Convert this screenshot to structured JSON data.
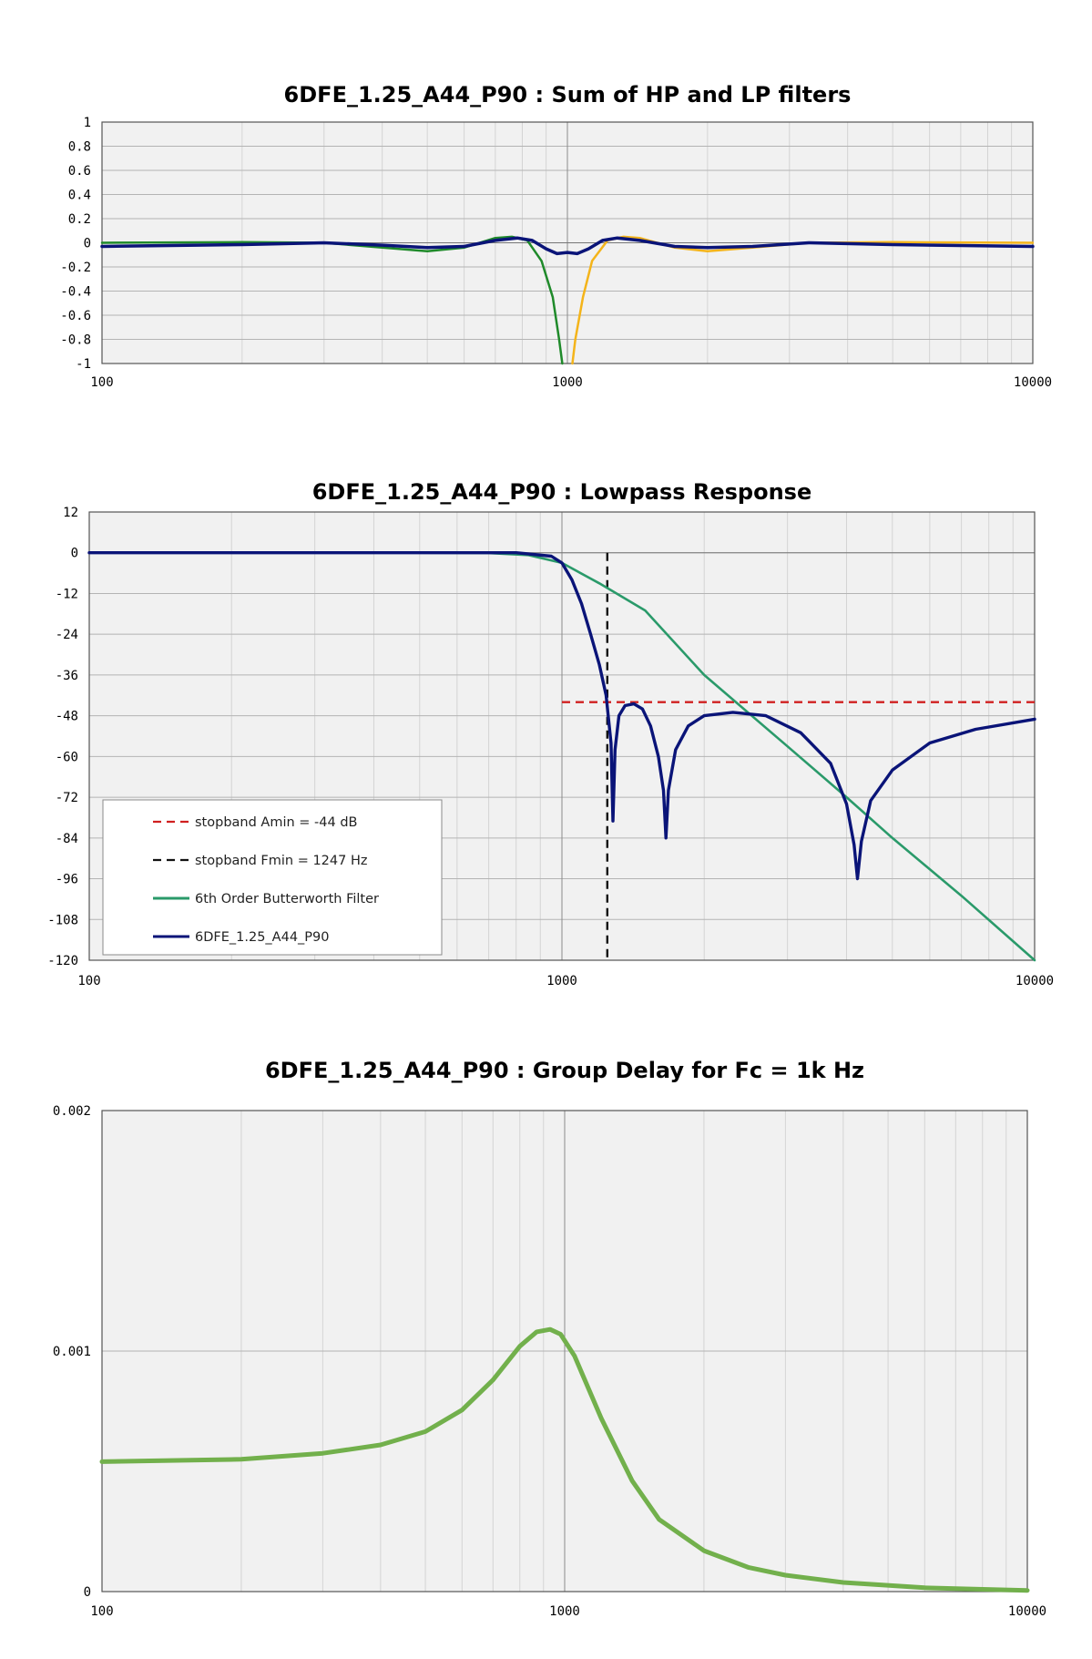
{
  "colors": {
    "plot_bg": "#f1f1f1",
    "grid": "#b4b4b4",
    "grid_minor": "#d4d4d4",
    "navy": "#0a1478",
    "butterworth_green": "#2a9a6a",
    "lp_green": "#1f8a2a",
    "hp_orange": "#f4b41a",
    "delay_green": "#72b04c",
    "amin_red": "#d02020",
    "fmin_black": "#111111"
  },
  "chart_data": [
    {
      "type": "line",
      "title": "6DFE_1.25_A44_P90 : Sum of HP and LP filters",
      "xscale": "log",
      "xlim": [
        100,
        10000
      ],
      "ylim": [
        -1,
        1
      ],
      "x_ticks": [
        "100",
        "1000",
        "10000"
      ],
      "y_ticks": [
        "1",
        "0.8",
        "0.6",
        "0.4",
        "0.2",
        "0",
        "-0.2",
        "-0.4",
        "-0.6",
        "-0.8",
        "-1"
      ],
      "grid": true,
      "series": [
        {
          "color": "lp_green",
          "points": [
            [
              100,
              0
            ],
            [
              200,
              0.005
            ],
            [
              300,
              0
            ],
            [
              400,
              -0.04
            ],
            [
              500,
              -0.07
            ],
            [
              600,
              -0.04
            ],
            [
              700,
              0.04
            ],
            [
              760,
              0.05
            ],
            [
              820,
              0.02
            ],
            [
              880,
              -0.15
            ],
            [
              930,
              -0.45
            ],
            [
              960,
              -0.8
            ],
            [
              975,
              -1
            ]
          ]
        },
        {
          "color": "hp_orange",
          "points": [
            [
              1025,
              -1
            ],
            [
              1040,
              -0.8
            ],
            [
              1080,
              -0.45
            ],
            [
              1130,
              -0.15
            ],
            [
              1220,
              0.02
            ],
            [
              1320,
              0.05
            ],
            [
              1430,
              0.04
            ],
            [
              1700,
              -0.04
            ],
            [
              2000,
              -0.07
            ],
            [
              2500,
              -0.04
            ],
            [
              3300,
              0
            ],
            [
              5000,
              0.005
            ],
            [
              10000,
              0
            ]
          ]
        },
        {
          "color": "navy",
          "points": [
            [
              100,
              -0.03
            ],
            [
              200,
              -0.015
            ],
            [
              300,
              0
            ],
            [
              400,
              -0.02
            ],
            [
              500,
              -0.04
            ],
            [
              600,
              -0.03
            ],
            [
              700,
              0.02
            ],
            [
              780,
              0.04
            ],
            [
              840,
              0.02
            ],
            [
              900,
              -0.05
            ],
            [
              950,
              -0.09
            ],
            [
              1000,
              -0.08
            ],
            [
              1050,
              -0.09
            ],
            [
              1110,
              -0.05
            ],
            [
              1190,
              0.02
            ],
            [
              1280,
              0.04
            ],
            [
              1430,
              0.02
            ],
            [
              1700,
              -0.03
            ],
            [
              2000,
              -0.04
            ],
            [
              2500,
              -0.03
            ],
            [
              3300,
              0
            ],
            [
              5000,
              -0.015
            ],
            [
              10000,
              -0.03
            ]
          ]
        }
      ]
    },
    {
      "type": "line",
      "title": "6DFE_1.25_A44_P90 : Lowpass Response",
      "xscale": "log",
      "xlim": [
        100,
        10000
      ],
      "ylim": [
        -120,
        12
      ],
      "x_ticks": [
        "100",
        "1000",
        "10000"
      ],
      "y_ticks": [
        "12",
        "0",
        "-12",
        "-24",
        "-36",
        "-48",
        "-60",
        "-72",
        "-84",
        "-96",
        "-108",
        "-120"
      ],
      "grid": true,
      "legend": {
        "position": "bottom-left",
        "entries": [
          {
            "label": "stopband Amin = -44 dB",
            "color": "amin_red",
            "dash": true
          },
          {
            "label": "stopband Fmin = 1247 Hz",
            "color": "fmin_black",
            "dash": true
          },
          {
            "label": "6th Order Butterworth Filter",
            "color": "butterworth_green",
            "dash": false
          },
          {
            "label": "6DFE_1.25_A44_P90",
            "color": "navy",
            "dash": false
          }
        ]
      },
      "series": [
        {
          "name": "stopband Amin = -44 dB",
          "color": "amin_red",
          "dash": true,
          "points": [
            [
              1000,
              -44
            ],
            [
              10000,
              -44
            ]
          ]
        },
        {
          "name": "stopband Fmin = 1247 Hz",
          "color": "fmin_black",
          "dash": true,
          "points": [
            [
              1247,
              0
            ],
            [
              1247,
              -120
            ]
          ]
        },
        {
          "name": "6th Order Butterworth Filter",
          "color": "butterworth_green",
          "dash": false,
          "points": [
            [
              100,
              0
            ],
            [
              500,
              0
            ],
            [
              700,
              -0.1
            ],
            [
              850,
              -0.7
            ],
            [
              1000,
              -3
            ],
            [
              1200,
              -9
            ],
            [
              1500,
              -17
            ],
            [
              2000,
              -36
            ],
            [
              3000,
              -57
            ],
            [
              4000,
              -72
            ],
            [
              5000,
              -84
            ],
            [
              7000,
              -101
            ],
            [
              10000,
              -120
            ]
          ]
        },
        {
          "name": "6DFE_1.25_A44_P90",
          "color": "navy",
          "dash": false,
          "points": [
            [
              100,
              0
            ],
            [
              800,
              0
            ],
            [
              950,
              -1
            ],
            [
              1000,
              -3
            ],
            [
              1050,
              -8
            ],
            [
              1100,
              -15
            ],
            [
              1150,
              -24
            ],
            [
              1200,
              -33
            ],
            [
              1240,
              -42
            ],
            [
              1270,
              -56
            ],
            [
              1282,
              -79
            ],
            [
              1295,
              -58
            ],
            [
              1320,
              -48
            ],
            [
              1360,
              -45
            ],
            [
              1420,
              -44.5
            ],
            [
              1480,
              -46
            ],
            [
              1540,
              -51
            ],
            [
              1600,
              -60
            ],
            [
              1640,
              -70
            ],
            [
              1660,
              -84
            ],
            [
              1680,
              -70
            ],
            [
              1740,
              -58
            ],
            [
              1850,
              -51
            ],
            [
              2000,
              -48
            ],
            [
              2300,
              -47
            ],
            [
              2700,
              -48
            ],
            [
              3200,
              -53
            ],
            [
              3700,
              -62
            ],
            [
              4000,
              -74
            ],
            [
              4150,
              -86
            ],
            [
              4220,
              -96
            ],
            [
              4300,
              -85
            ],
            [
              4500,
              -73
            ],
            [
              5000,
              -64
            ],
            [
              6000,
              -56
            ],
            [
              7500,
              -52
            ],
            [
              10000,
              -49
            ]
          ]
        }
      ]
    },
    {
      "type": "line",
      "title": "6DFE_1.25_A44_P90 : Group Delay for Fc = 1k Hz",
      "xscale": "log",
      "xlim": [
        100,
        10000
      ],
      "ylim": [
        0,
        0.002
      ],
      "x_ticks": [
        "100",
        "1000",
        "10000"
      ],
      "y_ticks": [
        "0.002",
        "0.001",
        "0"
      ],
      "grid": true,
      "series": [
        {
          "color": "delay_green",
          "points": [
            [
              100,
              0.00054
            ],
            [
              200,
              0.00055
            ],
            [
              300,
              0.000575
            ],
            [
              400,
              0.00061
            ],
            [
              500,
              0.000665
            ],
            [
              600,
              0.000755
            ],
            [
              700,
              0.00088
            ],
            [
              800,
              0.00102
            ],
            [
              870,
              0.00108
            ],
            [
              930,
              0.00109
            ],
            [
              980,
              0.00107
            ],
            [
              1050,
              0.00098
            ],
            [
              1200,
              0.00072
            ],
            [
              1400,
              0.00046
            ],
            [
              1600,
              0.0003
            ],
            [
              2000,
              0.00017
            ],
            [
              2500,
              0.0001
            ],
            [
              3000,
              6.8e-05
            ],
            [
              4000,
              3.8e-05
            ],
            [
              6000,
              1.6e-05
            ],
            [
              10000,
              5e-06
            ]
          ]
        }
      ]
    }
  ]
}
